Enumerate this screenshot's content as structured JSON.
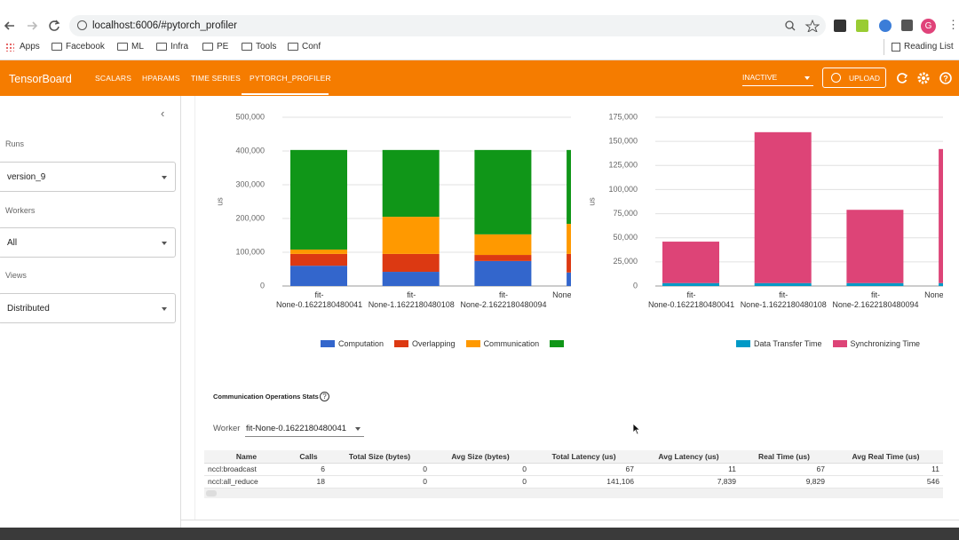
{
  "browser": {
    "url": "localhost:6006/#pytorch_profiler",
    "bookmarks": [
      "Apps",
      "Facebook",
      "ML",
      "Infra",
      "PE",
      "Tools",
      "Conf"
    ],
    "reading_list": "Reading List",
    "profile": "G"
  },
  "header": {
    "title": "TensorBoard",
    "tabs": [
      "SCALARS",
      "HPARAMS",
      "TIME SERIES",
      "PYTORCH_PROFILER"
    ],
    "status": "INACTIVE",
    "upload": "UPLOAD"
  },
  "sidebar": {
    "runs_label": "Runs",
    "runs": "version_9",
    "workers_label": "Workers",
    "workers": "All",
    "views_label": "Views",
    "views": "Distributed"
  },
  "chart_data": [
    {
      "type": "bar",
      "stacked": true,
      "ylabel": "us",
      "categories": [
        "fit-\nNone-0.1622180480041",
        "fit-\nNone-1.1622180480108",
        "fit-\nNone-2.1622180480094",
        "None"
      ],
      "series": [
        {
          "name": "Computation",
          "color": "#3366cc",
          "values": [
            60000,
            42000,
            74000,
            40000
          ]
        },
        {
          "name": "Overlapping",
          "color": "#dc3912",
          "values": [
            35000,
            53000,
            18000,
            55000
          ]
        },
        {
          "name": "Communication",
          "color": "#ff9900",
          "values": [
            13000,
            110000,
            61000,
            89000
          ]
        },
        {
          "name": null,
          "color": "#109618",
          "values": [
            295000,
            198000,
            250000,
            219000
          ]
        }
      ],
      "ylim": [
        0,
        500000
      ],
      "yticks": [
        0,
        {
          "value": 100000,
          "label": "100,000"
        },
        {
          "value": 200000,
          "label": "200,000"
        },
        {
          "value": 300000,
          "label": "300,000"
        },
        {
          "value": 400000,
          "label": "400,000"
        },
        {
          "value": 500000,
          "label": "500,000"
        }
      ],
      "grid": true
    },
    {
      "type": "bar",
      "stacked": true,
      "ylabel": "us",
      "categories": [
        "fit-\nNone-0.1622180480041",
        "fit-\nNone-1.1622180480108",
        "fit-\nNone-2.1622180480094",
        "None"
      ],
      "series": [
        {
          "name": "Data Transfer Time",
          "color": "#0099c6",
          "values": [
            3000,
            3000,
            3000,
            3000
          ]
        },
        {
          "name": "Synchronizing Time",
          "color": "#dd4477",
          "values": [
            43000,
            156500,
            76000,
            139000
          ]
        }
      ],
      "ylim": [
        0,
        175000
      ],
      "yticks": [
        0,
        {
          "value": 25000,
          "label": "25,000"
        },
        {
          "value": 50000,
          "label": "50,000"
        },
        {
          "value": 75000,
          "label": "75,000"
        },
        {
          "value": 100000,
          "label": "100,000"
        },
        {
          "value": 125000,
          "label": "125,000"
        },
        {
          "value": 150000,
          "label": "150,000"
        },
        {
          "value": 175000,
          "label": "175,000"
        }
      ],
      "grid": true
    }
  ],
  "comm_stats": {
    "title": "Communication Operations Stats",
    "worker_label": "Worker",
    "worker": "fit-None-0.1622180480041",
    "table": {
      "columns": [
        "Name",
        "Calls",
        "Total Size (bytes)",
        "Avg Size (bytes)",
        "Total Latency (us)",
        "Avg Latency (us)",
        "Real Time (us)",
        "Avg Real Time (us)"
      ],
      "rows": [
        [
          "nccl:broadcast",
          "6",
          "0",
          "0",
          "67",
          "11",
          "67",
          "11"
        ],
        [
          "nccl:all_reduce",
          "18",
          "0",
          "0",
          "141,106",
          "7,839",
          "9,829",
          "546"
        ]
      ]
    }
  }
}
